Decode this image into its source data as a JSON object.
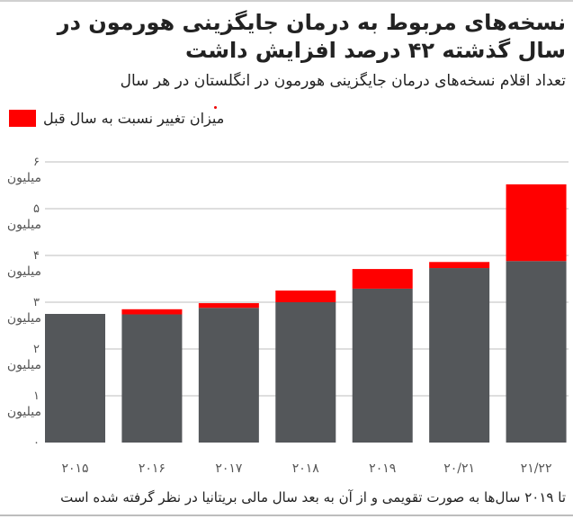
{
  "title": "نسخه‌های مربوط به درمان جایگزینی هورمون در سال گذشته ۴۲ درصد افزایش داشت",
  "subtitle": "تعداد اقلام نسخه‌های درمان جایگزینی هورمون در انگلستان در هر سال",
  "footer": "تا ۲۰۱۹ سال‌ها به صورت تقویمی و از آن به بعد سال مالی بریتانیا در نظر گرفته شده است",
  "colors": {
    "base": "#54575a",
    "change": "#ff0000",
    "grid": "#bdbdbd"
  },
  "chart_data": {
    "type": "bar",
    "stacked": true,
    "legend": {
      "label": "میزان تغییر نسبت به سال قبل",
      "position": "top-left"
    },
    "categories": [
      "۲۰۱۵",
      "۲۰۱۶",
      "۲۰۱۷",
      "۲۰۱۸",
      "۲۰۱۹",
      "۲۰/۲۱",
      "۲۱/۲۲"
    ],
    "series": [
      {
        "key": "base",
        "values": [
          2.75,
          2.74,
          2.88,
          3.0,
          3.29,
          3.73,
          3.88
        ]
      },
      {
        "key": "change",
        "name": "میزان تغییر نسبت به سال قبل",
        "values": [
          0,
          0.11,
          0.1,
          0.25,
          0.42,
          0.13,
          1.64
        ]
      }
    ],
    "ylim": [
      0,
      6
    ],
    "yticks": [
      0,
      1,
      2,
      3,
      4,
      5,
      6
    ],
    "ytick_labels": [
      "۰",
      "۱",
      "۲",
      "۳",
      "۴",
      "۵",
      "۶"
    ],
    "ytick_unit": "میلیون",
    "grid": true,
    "unit": "million items"
  }
}
